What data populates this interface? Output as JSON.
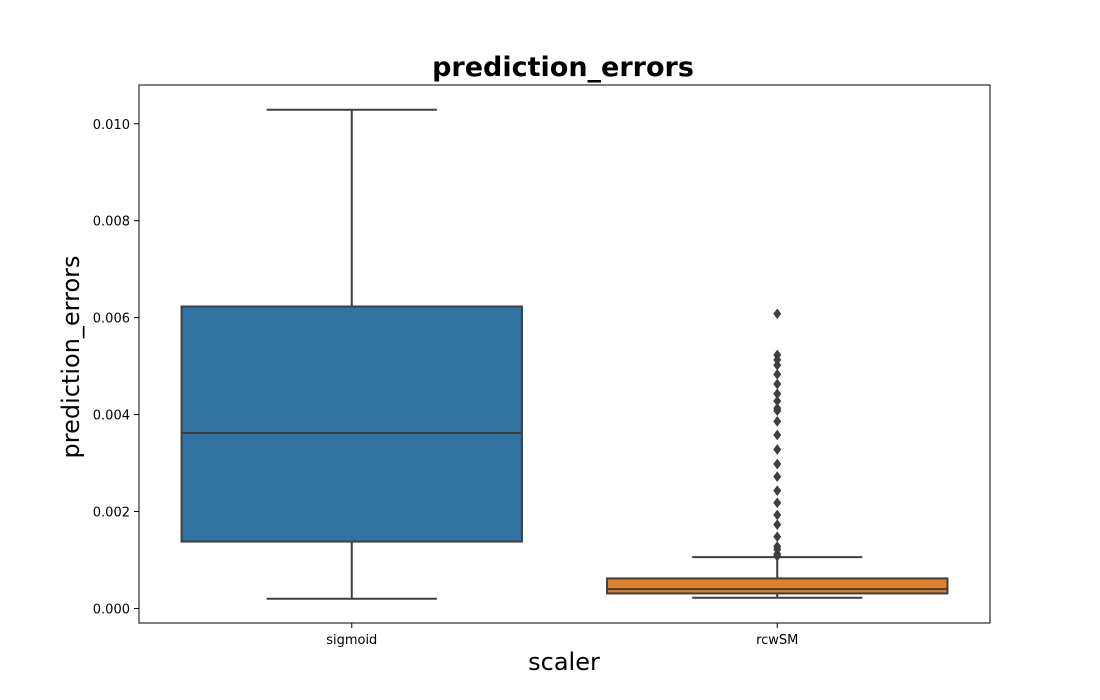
{
  "chart_data": {
    "type": "box",
    "title": "prediction_errors",
    "xlabel": "scaler",
    "ylabel": "prediction_errors",
    "ylim": [
      -0.0003,
      0.0108
    ],
    "yticks": [
      {
        "value": 0.0,
        "label": "0.000"
      },
      {
        "value": 0.002,
        "label": "0.002"
      },
      {
        "value": 0.004,
        "label": "0.004"
      },
      {
        "value": 0.006,
        "label": "0.006"
      },
      {
        "value": 0.008,
        "label": "0.008"
      },
      {
        "value": 0.01,
        "label": "0.010"
      }
    ],
    "grid": false,
    "categories": [
      "sigmoid",
      "rcwSM"
    ],
    "boxes": [
      {
        "category": "sigmoid",
        "color": "#3274a1",
        "whisker_low": 0.0002,
        "q1": 0.00138,
        "median": 0.00362,
        "q3": 0.00623,
        "whisker_high": 0.01029,
        "outliers": []
      },
      {
        "category": "rcwSM",
        "color": "#e1812c",
        "whisker_low": 0.00022,
        "q1": 0.00031,
        "median": 0.0004,
        "q3": 0.00062,
        "whisker_high": 0.00106,
        "outliers": [
          0.00108,
          0.00112,
          0.00122,
          0.00128,
          0.00148,
          0.00173,
          0.00193,
          0.00218,
          0.00243,
          0.00272,
          0.00298,
          0.00328,
          0.00358,
          0.00386,
          0.00408,
          0.00413,
          0.00428,
          0.00443,
          0.00463,
          0.00483,
          0.00502,
          0.00513,
          0.00523,
          0.00608
        ]
      }
    ]
  }
}
